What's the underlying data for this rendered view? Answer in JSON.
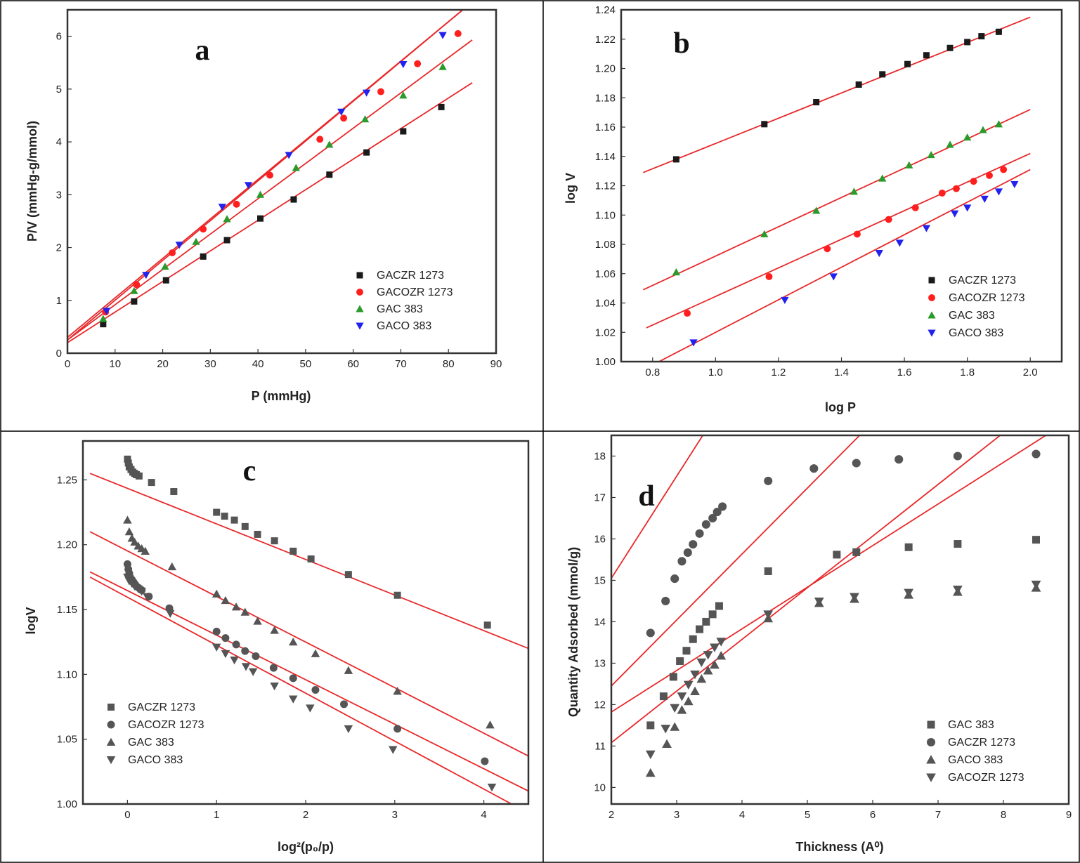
{
  "colors": {
    "fit": "#e8282a",
    "black": "#1a1a1a",
    "red": "#ff1e1e",
    "green": "#2a9a2a",
    "blue": "#2222ee",
    "gray": "#555555",
    "frame": "#333333"
  },
  "chart_data": [
    {
      "panel": "a",
      "type": "scatter",
      "xlabel": "P (mmHg)",
      "ylabel": "P/V  (mmHg-g/mmol)",
      "xlim": [
        0,
        90
      ],
      "ylim": [
        0,
        6.5
      ],
      "xticks": [
        "0",
        "10",
        "20",
        "30",
        "40",
        "50",
        "60",
        "70",
        "80",
        "90"
      ],
      "yticks": [
        "0",
        "1",
        "2",
        "3",
        "4",
        "5",
        "6"
      ],
      "legend_position": "lower-right",
      "series": [
        {
          "name": "GACZR 1273",
          "marker": "square",
          "color": "black",
          "x": [
            7.5,
            14,
            20.7,
            28.5,
            33.5,
            40.5,
            47.5,
            55,
            62.8,
            70.5,
            78.5
          ],
          "y": [
            0.55,
            0.98,
            1.38,
            1.83,
            2.14,
            2.55,
            2.91,
            3.38,
            3.8,
            4.2,
            4.66
          ],
          "fit": [
            [
              0,
              0.2
            ],
            [
              85,
              5.12
            ]
          ]
        },
        {
          "name": "GACOZR 1273",
          "marker": "circle",
          "color": "red",
          "x": [
            8,
            14.5,
            22,
            28.5,
            35.5,
            42.5,
            53,
            58,
            65.8,
            73.5,
            82
          ],
          "y": [
            0.78,
            1.3,
            1.9,
            2.35,
            2.82,
            3.37,
            4.05,
            4.45,
            4.95,
            5.48,
            6.05
          ],
          "fit": [
            [
              0,
              0.3
            ],
            [
              83,
              6.5
            ]
          ]
        },
        {
          "name": "GAC 383",
          "marker": "triangle-up",
          "color": "green",
          "x": [
            7.5,
            14,
            20.5,
            27,
            33.5,
            40.5,
            48,
            55,
            62.5,
            70.5,
            78.8
          ],
          "y": [
            0.65,
            1.18,
            1.64,
            2.11,
            2.54,
            3.0,
            3.51,
            3.95,
            4.43,
            4.88,
            5.42
          ],
          "fit": [
            [
              0,
              0.25
            ],
            [
              85,
              5.93
            ]
          ]
        },
        {
          "name": "GACO 383",
          "marker": "triangle-down",
          "color": "blue",
          "x": [
            8.2,
            16.5,
            23.5,
            32.5,
            38,
            46.5,
            57.5,
            62.8,
            70.5,
            78.8
          ],
          "y": [
            0.8,
            1.48,
            2.05,
            2.77,
            3.18,
            3.75,
            4.57,
            4.93,
            5.47,
            6.02
          ],
          "fit": [
            [
              0,
              0.25
            ],
            [
              83,
              6.5
            ]
          ]
        }
      ]
    },
    {
      "panel": "b",
      "type": "scatter",
      "xlabel": "log P",
      "ylabel": "log V",
      "xlim": [
        0.7,
        2.1
      ],
      "ylim": [
        1.0,
        1.24
      ],
      "xticks": [
        "0.8",
        "1.0",
        "1.2",
        "1.4",
        "1.6",
        "1.8",
        "2.0"
      ],
      "yticks": [
        "1.00",
        "1.02",
        "1.04",
        "1.06",
        "1.08",
        "1.10",
        "1.12",
        "1.14",
        "1.16",
        "1.18",
        "1.20",
        "1.22",
        "1.24"
      ],
      "legend_position": "lower-right",
      "series": [
        {
          "name": "GACZR 1273",
          "marker": "square",
          "color": "black",
          "x": [
            0.875,
            1.155,
            1.32,
            1.455,
            1.53,
            1.61,
            1.67,
            1.745,
            1.8,
            1.845,
            1.9
          ],
          "y": [
            1.138,
            1.162,
            1.177,
            1.189,
            1.196,
            1.203,
            1.209,
            1.214,
            1.218,
            1.222,
            1.225
          ],
          "fit": [
            [
              0.77,
              1.129
            ],
            [
              2.0,
              1.235
            ]
          ]
        },
        {
          "name": "GACOZR 1273",
          "marker": "circle",
          "color": "red",
          "x": [
            0.91,
            1.17,
            1.355,
            1.45,
            1.55,
            1.635,
            1.72,
            1.765,
            1.82,
            1.87,
            1.915
          ],
          "y": [
            1.033,
            1.058,
            1.077,
            1.087,
            1.097,
            1.105,
            1.115,
            1.118,
            1.123,
            1.127,
            1.131
          ],
          "fit": [
            [
              0.78,
              1.023
            ],
            [
              2.0,
              1.142
            ]
          ]
        },
        {
          "name": "GAC 383",
          "marker": "triangle-up",
          "color": "green",
          "x": [
            0.875,
            1.155,
            1.32,
            1.44,
            1.53,
            1.615,
            1.685,
            1.745,
            1.8,
            1.85,
            1.9
          ],
          "y": [
            1.061,
            1.087,
            1.103,
            1.116,
            1.125,
            1.134,
            1.141,
            1.148,
            1.153,
            1.158,
            1.162
          ],
          "fit": [
            [
              0.77,
              1.049
            ],
            [
              2.0,
              1.172
            ]
          ]
        },
        {
          "name": "GACO 383",
          "marker": "triangle-down",
          "color": "blue",
          "x": [
            0.93,
            1.22,
            1.375,
            1.52,
            1.585,
            1.67,
            1.76,
            1.8,
            1.855,
            1.9,
            1.95
          ],
          "y": [
            1.013,
            1.042,
            1.058,
            1.074,
            1.081,
            1.091,
            1.101,
            1.105,
            1.111,
            1.116,
            1.121
          ],
          "fit": [
            [
              0.82,
              1.0
            ],
            [
              2.0,
              1.131
            ]
          ]
        }
      ]
    },
    {
      "panel": "c",
      "type": "scatter",
      "xlabel": "log²(p₀/p)",
      "ylabel": "logV",
      "xlim": [
        -0.5,
        4.5
      ],
      "ylim": [
        1.0,
        1.28
      ],
      "xticks": [
        "0",
        "1",
        "2",
        "3",
        "4"
      ],
      "yticks": [
        "1.00",
        "1.05",
        "1.10",
        "1.15",
        "1.20",
        "1.25"
      ],
      "legend_position": "lower-left",
      "series": [
        {
          "name": "GACZR 1273",
          "marker": "square",
          "color": "gray",
          "x": [
            0,
            0.01,
            0.02,
            0.04,
            0.06,
            0.08,
            0.1,
            0.13,
            0.27,
            0.52,
            1,
            1.09,
            1.2,
            1.32,
            1.46,
            1.65,
            1.86,
            2.06,
            2.48,
            3.03,
            4.04
          ],
          "y": [
            1.266,
            1.263,
            1.26,
            1.258,
            1.256,
            1.255,
            1.254,
            1.253,
            1.248,
            1.241,
            1.225,
            1.222,
            1.219,
            1.214,
            1.208,
            1.203,
            1.195,
            1.189,
            1.177,
            1.161,
            1.138
          ],
          "fit": [
            [
              -0.42,
              1.255
            ],
            [
              4.5,
              1.12
            ]
          ]
        },
        {
          "name": "GACOZR 1273",
          "marker": "circle",
          "color": "gray",
          "x": [
            0,
            0.01,
            0.02,
            0.03,
            0.05,
            0.07,
            0.09,
            0.12,
            0.16,
            0.24,
            0.47,
            1,
            1.1,
            1.22,
            1.32,
            1.44,
            1.64,
            1.86,
            2.11,
            2.43,
            3.03,
            4.01
          ],
          "y": [
            1.185,
            1.181,
            1.178,
            1.175,
            1.173,
            1.171,
            1.169,
            1.167,
            1.165,
            1.16,
            1.151,
            1.133,
            1.128,
            1.123,
            1.118,
            1.114,
            1.105,
            1.097,
            1.088,
            1.077,
            1.058,
            1.033
          ],
          "fit": [
            [
              -0.42,
              1.179
            ],
            [
              4.5,
              1.01
            ]
          ]
        },
        {
          "name": "GAC 383",
          "marker": "triangle-up",
          "color": "gray",
          "x": [
            0,
            0.02,
            0.05,
            0.08,
            0.12,
            0.16,
            0.2,
            0.5,
            1,
            1.1,
            1.22,
            1.32,
            1.46,
            1.65,
            1.86,
            2.11,
            2.48,
            3.03,
            4.07
          ],
          "y": [
            1.219,
            1.21,
            1.205,
            1.202,
            1.199,
            1.197,
            1.195,
            1.183,
            1.162,
            1.157,
            1.152,
            1.148,
            1.141,
            1.134,
            1.125,
            1.116,
            1.103,
            1.087,
            1.061
          ],
          "fit": [
            [
              -0.42,
              1.21
            ],
            [
              4.5,
              1.037
            ]
          ]
        },
        {
          "name": "GACO 383",
          "marker": "triangle-down",
          "color": "gray",
          "x": [
            0,
            0.02,
            0.05,
            0.08,
            0.12,
            0.16,
            0.22,
            0.48,
            1,
            1.1,
            1.2,
            1.33,
            1.41,
            1.65,
            1.86,
            2.05,
            2.48,
            2.98,
            4.09
          ],
          "y": [
            1.175,
            1.172,
            1.17,
            1.168,
            1.166,
            1.164,
            1.16,
            1.147,
            1.121,
            1.116,
            1.111,
            1.106,
            1.102,
            1.091,
            1.081,
            1.074,
            1.058,
            1.042,
            1.013
          ],
          "fit": [
            [
              -0.42,
              1.175
            ],
            [
              4.5,
              0.993
            ]
          ]
        }
      ]
    },
    {
      "panel": "d",
      "type": "scatter",
      "xlabel": "Thickness (A⁰)",
      "ylabel": "Quantity Adsorbed (mmol/g)",
      "xlim": [
        2,
        9
      ],
      "ylim": [
        9.6,
        18.5
      ],
      "xticks": [
        "2",
        "3",
        "4",
        "5",
        "6",
        "7",
        "8",
        "9"
      ],
      "yticks": [
        "10",
        "11",
        "12",
        "13",
        "14",
        "15",
        "16",
        "17",
        "18"
      ],
      "legend_position": "lower-right",
      "series": [
        {
          "name": "GAC 383",
          "marker": "square",
          "color": "gray",
          "x": [
            2.6,
            2.8,
            2.95,
            3.05,
            3.15,
            3.25,
            3.35,
            3.45,
            3.55,
            3.65,
            4.4,
            5.45,
            5.75,
            6.55,
            7.3,
            8.5
          ],
          "y": [
            11.5,
            12.2,
            12.67,
            13.05,
            13.3,
            13.58,
            13.82,
            14.0,
            14.18,
            14.38,
            15.22,
            15.62,
            15.68,
            15.8,
            15.88,
            15.98
          ],
          "fit": [
            [
              2,
              12.45
            ],
            [
              5.8,
              18.5
            ]
          ]
        },
        {
          "name": "GACZR 1273",
          "marker": "circle",
          "color": "gray",
          "x": [
            2.6,
            2.83,
            2.97,
            3.08,
            3.17,
            3.25,
            3.35,
            3.45,
            3.55,
            3.62,
            3.7,
            4.4,
            5.1,
            5.75,
            6.4,
            7.3,
            8.5
          ],
          "y": [
            13.73,
            14.5,
            15.04,
            15.46,
            15.67,
            15.87,
            16.13,
            16.35,
            16.5,
            16.65,
            16.78,
            17.4,
            17.7,
            17.83,
            17.92,
            18.0,
            18.05
          ],
          "fit": [
            [
              2,
              15.05
            ],
            [
              3.4,
              18.5
            ]
          ]
        },
        {
          "name": "GACO 383",
          "marker": "triangle-up",
          "color": "gray",
          "x": [
            2.6,
            2.85,
            2.97,
            3.08,
            3.18,
            3.28,
            3.38,
            3.48,
            3.58,
            3.68,
            4.4,
            5.18,
            5.72,
            6.55,
            7.3,
            8.5
          ],
          "y": [
            10.35,
            11.05,
            11.46,
            11.87,
            12.08,
            12.32,
            12.62,
            12.82,
            12.96,
            13.18,
            14.08,
            14.45,
            14.55,
            14.65,
            14.72,
            14.82
          ],
          "fit": [
            [
              2,
              11.08
            ],
            [
              7.95,
              18.5
            ]
          ]
        },
        {
          "name": "GACOZR 1273",
          "marker": "triangle-down",
          "color": "gray",
          "x": [
            2.6,
            2.83,
            2.97,
            3.08,
            3.18,
            3.28,
            3.38,
            3.48,
            3.58,
            3.68,
            4.4,
            5.18,
            5.72,
            6.55,
            7.3,
            8.5
          ],
          "y": [
            10.8,
            11.42,
            11.92,
            12.2,
            12.48,
            12.73,
            13.02,
            13.2,
            13.38,
            13.52,
            14.18,
            14.49,
            14.6,
            14.7,
            14.78,
            14.9
          ],
          "fit": [
            [
              2,
              11.82
            ],
            [
              8.65,
              18.5
            ]
          ]
        }
      ]
    }
  ]
}
